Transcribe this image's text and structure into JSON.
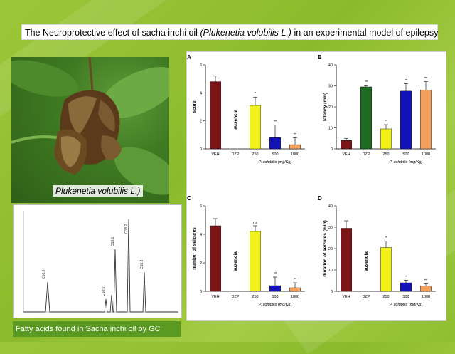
{
  "title": {
    "prefix": "The Neuroprotective effect of sacha inchi oil ",
    "italic": "(Plukenetia volubilis L.)",
    "suffix": " in an experimental model of epilepsy"
  },
  "photo_caption": "Plukenetia volubilis L.)",
  "gc_caption": "Fatty acids found in Sacha inchi oil by GC",
  "gc_peak_labels": [
    "C16:0",
    "C18:0",
    "C18:1",
    "C18:2",
    "C18:3"
  ],
  "chart_data": [
    {
      "panel": "A",
      "type": "bar",
      "categories": [
        "VEH",
        "DZP",
        "250",
        "500",
        "1000"
      ],
      "values": [
        4.8,
        0,
        3.1,
        0.8,
        0.3
      ],
      "errors": [
        0.4,
        0,
        0.6,
        0.9,
        0.5
      ],
      "sig": [
        "",
        "",
        "*",
        "**",
        "**"
      ],
      "bar_text": "ausencia",
      "ylabel": "score",
      "xlabel": "P. volubilis (mg/Kg)",
      "ylim": [
        0,
        6
      ],
      "yticks": [
        0,
        2,
        4,
        6
      ]
    },
    {
      "panel": "B",
      "type": "bar",
      "categories": [
        "VEH",
        "DZP",
        "250",
        "500",
        "1000"
      ],
      "values": [
        4,
        29.5,
        9.5,
        27.5,
        28
      ],
      "errors": [
        1,
        0.6,
        2,
        3.5,
        4
      ],
      "sig": [
        "",
        "**",
        "**",
        "**",
        "**"
      ],
      "bar_text": "",
      "ylabel": "latency (min)",
      "xlabel": "P. volubilis (mg/Kg)",
      "ylim": [
        0,
        40
      ],
      "yticks": [
        0,
        10,
        20,
        30,
        40
      ]
    },
    {
      "panel": "C",
      "type": "bar",
      "categories": [
        "VEH",
        "DZP",
        "250",
        "500",
        "1000"
      ],
      "values": [
        4.6,
        0,
        4.2,
        0.4,
        0.25
      ],
      "errors": [
        0.5,
        0,
        0.4,
        0.6,
        0.35
      ],
      "sig": [
        "",
        "",
        "ns",
        "**",
        "**"
      ],
      "bar_text": "ausencia",
      "ylabel": "number of seizures",
      "xlabel": "P. volubilis (mg/Kg)",
      "ylim": [
        0,
        6
      ],
      "yticks": [
        0,
        2,
        4,
        6
      ]
    },
    {
      "panel": "D",
      "type": "bar",
      "categories": [
        "VEH",
        "DZP",
        "250",
        "500",
        "1000"
      ],
      "values": [
        29.5,
        0,
        20.5,
        4,
        2.5
      ],
      "errors": [
        3.5,
        0,
        3,
        1.2,
        1
      ],
      "sig": [
        "",
        "",
        "*",
        "**",
        "**"
      ],
      "bar_text": "ausencia",
      "ylabel": "duration of seizures (min)",
      "xlabel": "P. volubilis (mg/Kg)",
      "ylim": [
        0,
        40
      ],
      "yticks": [
        0,
        10,
        20,
        30,
        40
      ]
    }
  ],
  "bar_colors": [
    "#7a1416",
    "#1f6b23",
    "#f2f21a",
    "#1212b8",
    "#f5a05a"
  ]
}
